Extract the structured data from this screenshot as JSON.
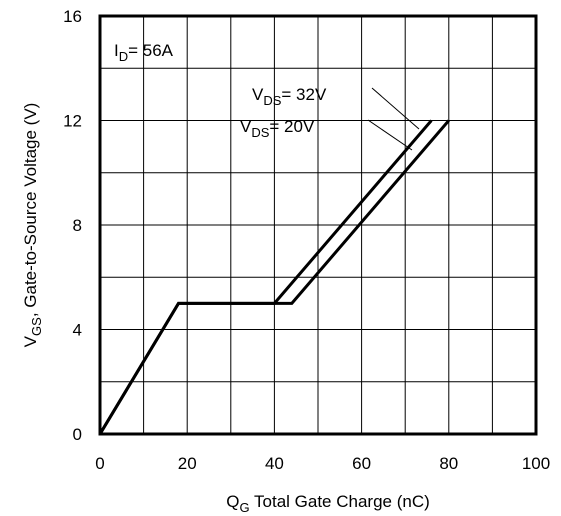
{
  "chart_data": {
    "type": "line",
    "xlabel": {
      "main": "Q",
      "sub": "G",
      "rest": " Total Gate Charge (nC)"
    },
    "ylabel": {
      "main": "V",
      "sub": "GS",
      "rest": ", Gate-to-Source Voltage (V)"
    },
    "xlim": [
      0,
      100
    ],
    "ylim": [
      0,
      16
    ],
    "xticks": [
      0,
      20,
      40,
      60,
      80,
      100
    ],
    "yticks": [
      0,
      4,
      8,
      12,
      16
    ],
    "grid": true,
    "annotations": [
      {
        "main": "I",
        "sub": "D",
        "rest": "= 56A"
      },
      {
        "main": "V",
        "sub": "DS",
        "rest": "= 32V"
      },
      {
        "main": "V",
        "sub": "DS",
        "rest": "= 20V"
      }
    ],
    "series": [
      {
        "label_ref": 1,
        "x": [
          0,
          18,
          44,
          80
        ],
        "y": [
          0,
          5,
          5,
          12
        ]
      },
      {
        "label_ref": 2,
        "x": [
          0,
          18,
          40,
          76
        ],
        "y": [
          0,
          5,
          5,
          12
        ]
      }
    ]
  }
}
